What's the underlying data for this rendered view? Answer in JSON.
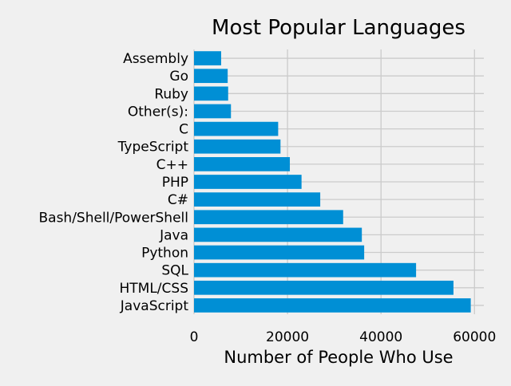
{
  "chart_data": {
    "type": "bar",
    "orientation": "horizontal",
    "title": "Most Popular Languages",
    "xlabel": "Number of People Who Use",
    "ylabel": "",
    "xlim": [
      0,
      62000
    ],
    "xticks": [
      0,
      20000,
      40000,
      60000
    ],
    "grid": true,
    "categories": [
      "JavaScript",
      "HTML/CSS",
      "SQL",
      "Python",
      "Java",
      "Bash/Shell/PowerShell",
      "C#",
      "PHP",
      "C++",
      "TypeScript",
      "C",
      "Other(s):",
      "Ruby",
      "Go",
      "Assembly"
    ],
    "values": [
      59200,
      55500,
      47500,
      36400,
      35900,
      31900,
      27000,
      23000,
      20500,
      18500,
      18000,
      7900,
      7300,
      7200,
      5800
    ]
  },
  "colors": {
    "background": "#f0f0f0",
    "bar": "#008fd5",
    "grid": "#cbcbcb"
  }
}
